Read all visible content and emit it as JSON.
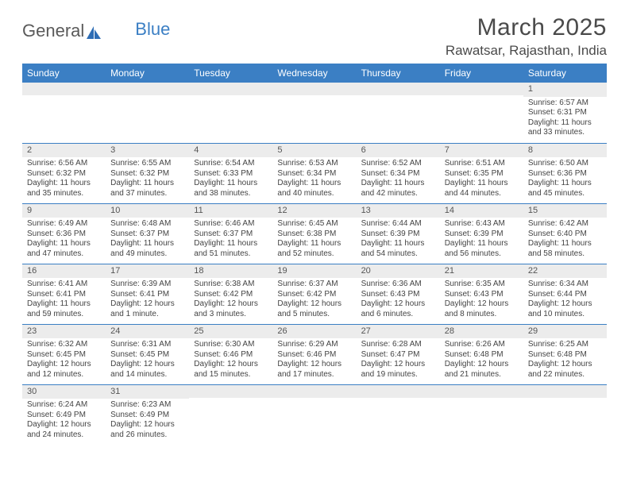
{
  "logo": {
    "text_general": "General",
    "text_blue": "Blue"
  },
  "header": {
    "title": "March 2025",
    "location": "Rawatsar, Rajasthan, India"
  },
  "colors": {
    "header_bg": "#3b7fc4",
    "daybar_bg": "#ececec",
    "rule": "#3b7fc4"
  },
  "day_labels": [
    "Sunday",
    "Monday",
    "Tuesday",
    "Wednesday",
    "Thursday",
    "Friday",
    "Saturday"
  ],
  "weeks": [
    [
      null,
      null,
      null,
      null,
      null,
      null,
      {
        "n": "1",
        "sunrise": "Sunrise: 6:57 AM",
        "sunset": "Sunset: 6:31 PM",
        "daylight": "Daylight: 11 hours and 33 minutes."
      }
    ],
    [
      {
        "n": "2",
        "sunrise": "Sunrise: 6:56 AM",
        "sunset": "Sunset: 6:32 PM",
        "daylight": "Daylight: 11 hours and 35 minutes."
      },
      {
        "n": "3",
        "sunrise": "Sunrise: 6:55 AM",
        "sunset": "Sunset: 6:32 PM",
        "daylight": "Daylight: 11 hours and 37 minutes."
      },
      {
        "n": "4",
        "sunrise": "Sunrise: 6:54 AM",
        "sunset": "Sunset: 6:33 PM",
        "daylight": "Daylight: 11 hours and 38 minutes."
      },
      {
        "n": "5",
        "sunrise": "Sunrise: 6:53 AM",
        "sunset": "Sunset: 6:34 PM",
        "daylight": "Daylight: 11 hours and 40 minutes."
      },
      {
        "n": "6",
        "sunrise": "Sunrise: 6:52 AM",
        "sunset": "Sunset: 6:34 PM",
        "daylight": "Daylight: 11 hours and 42 minutes."
      },
      {
        "n": "7",
        "sunrise": "Sunrise: 6:51 AM",
        "sunset": "Sunset: 6:35 PM",
        "daylight": "Daylight: 11 hours and 44 minutes."
      },
      {
        "n": "8",
        "sunrise": "Sunrise: 6:50 AM",
        "sunset": "Sunset: 6:36 PM",
        "daylight": "Daylight: 11 hours and 45 minutes."
      }
    ],
    [
      {
        "n": "9",
        "sunrise": "Sunrise: 6:49 AM",
        "sunset": "Sunset: 6:36 PM",
        "daylight": "Daylight: 11 hours and 47 minutes."
      },
      {
        "n": "10",
        "sunrise": "Sunrise: 6:48 AM",
        "sunset": "Sunset: 6:37 PM",
        "daylight": "Daylight: 11 hours and 49 minutes."
      },
      {
        "n": "11",
        "sunrise": "Sunrise: 6:46 AM",
        "sunset": "Sunset: 6:37 PM",
        "daylight": "Daylight: 11 hours and 51 minutes."
      },
      {
        "n": "12",
        "sunrise": "Sunrise: 6:45 AM",
        "sunset": "Sunset: 6:38 PM",
        "daylight": "Daylight: 11 hours and 52 minutes."
      },
      {
        "n": "13",
        "sunrise": "Sunrise: 6:44 AM",
        "sunset": "Sunset: 6:39 PM",
        "daylight": "Daylight: 11 hours and 54 minutes."
      },
      {
        "n": "14",
        "sunrise": "Sunrise: 6:43 AM",
        "sunset": "Sunset: 6:39 PM",
        "daylight": "Daylight: 11 hours and 56 minutes."
      },
      {
        "n": "15",
        "sunrise": "Sunrise: 6:42 AM",
        "sunset": "Sunset: 6:40 PM",
        "daylight": "Daylight: 11 hours and 58 minutes."
      }
    ],
    [
      {
        "n": "16",
        "sunrise": "Sunrise: 6:41 AM",
        "sunset": "Sunset: 6:41 PM",
        "daylight": "Daylight: 11 hours and 59 minutes."
      },
      {
        "n": "17",
        "sunrise": "Sunrise: 6:39 AM",
        "sunset": "Sunset: 6:41 PM",
        "daylight": "Daylight: 12 hours and 1 minute."
      },
      {
        "n": "18",
        "sunrise": "Sunrise: 6:38 AM",
        "sunset": "Sunset: 6:42 PM",
        "daylight": "Daylight: 12 hours and 3 minutes."
      },
      {
        "n": "19",
        "sunrise": "Sunrise: 6:37 AM",
        "sunset": "Sunset: 6:42 PM",
        "daylight": "Daylight: 12 hours and 5 minutes."
      },
      {
        "n": "20",
        "sunrise": "Sunrise: 6:36 AM",
        "sunset": "Sunset: 6:43 PM",
        "daylight": "Daylight: 12 hours and 6 minutes."
      },
      {
        "n": "21",
        "sunrise": "Sunrise: 6:35 AM",
        "sunset": "Sunset: 6:43 PM",
        "daylight": "Daylight: 12 hours and 8 minutes."
      },
      {
        "n": "22",
        "sunrise": "Sunrise: 6:34 AM",
        "sunset": "Sunset: 6:44 PM",
        "daylight": "Daylight: 12 hours and 10 minutes."
      }
    ],
    [
      {
        "n": "23",
        "sunrise": "Sunrise: 6:32 AM",
        "sunset": "Sunset: 6:45 PM",
        "daylight": "Daylight: 12 hours and 12 minutes."
      },
      {
        "n": "24",
        "sunrise": "Sunrise: 6:31 AM",
        "sunset": "Sunset: 6:45 PM",
        "daylight": "Daylight: 12 hours and 14 minutes."
      },
      {
        "n": "25",
        "sunrise": "Sunrise: 6:30 AM",
        "sunset": "Sunset: 6:46 PM",
        "daylight": "Daylight: 12 hours and 15 minutes."
      },
      {
        "n": "26",
        "sunrise": "Sunrise: 6:29 AM",
        "sunset": "Sunset: 6:46 PM",
        "daylight": "Daylight: 12 hours and 17 minutes."
      },
      {
        "n": "27",
        "sunrise": "Sunrise: 6:28 AM",
        "sunset": "Sunset: 6:47 PM",
        "daylight": "Daylight: 12 hours and 19 minutes."
      },
      {
        "n": "28",
        "sunrise": "Sunrise: 6:26 AM",
        "sunset": "Sunset: 6:48 PM",
        "daylight": "Daylight: 12 hours and 21 minutes."
      },
      {
        "n": "29",
        "sunrise": "Sunrise: 6:25 AM",
        "sunset": "Sunset: 6:48 PM",
        "daylight": "Daylight: 12 hours and 22 minutes."
      }
    ],
    [
      {
        "n": "30",
        "sunrise": "Sunrise: 6:24 AM",
        "sunset": "Sunset: 6:49 PM",
        "daylight": "Daylight: 12 hours and 24 minutes."
      },
      {
        "n": "31",
        "sunrise": "Sunrise: 6:23 AM",
        "sunset": "Sunset: 6:49 PM",
        "daylight": "Daylight: 12 hours and 26 minutes."
      },
      null,
      null,
      null,
      null,
      null
    ]
  ]
}
